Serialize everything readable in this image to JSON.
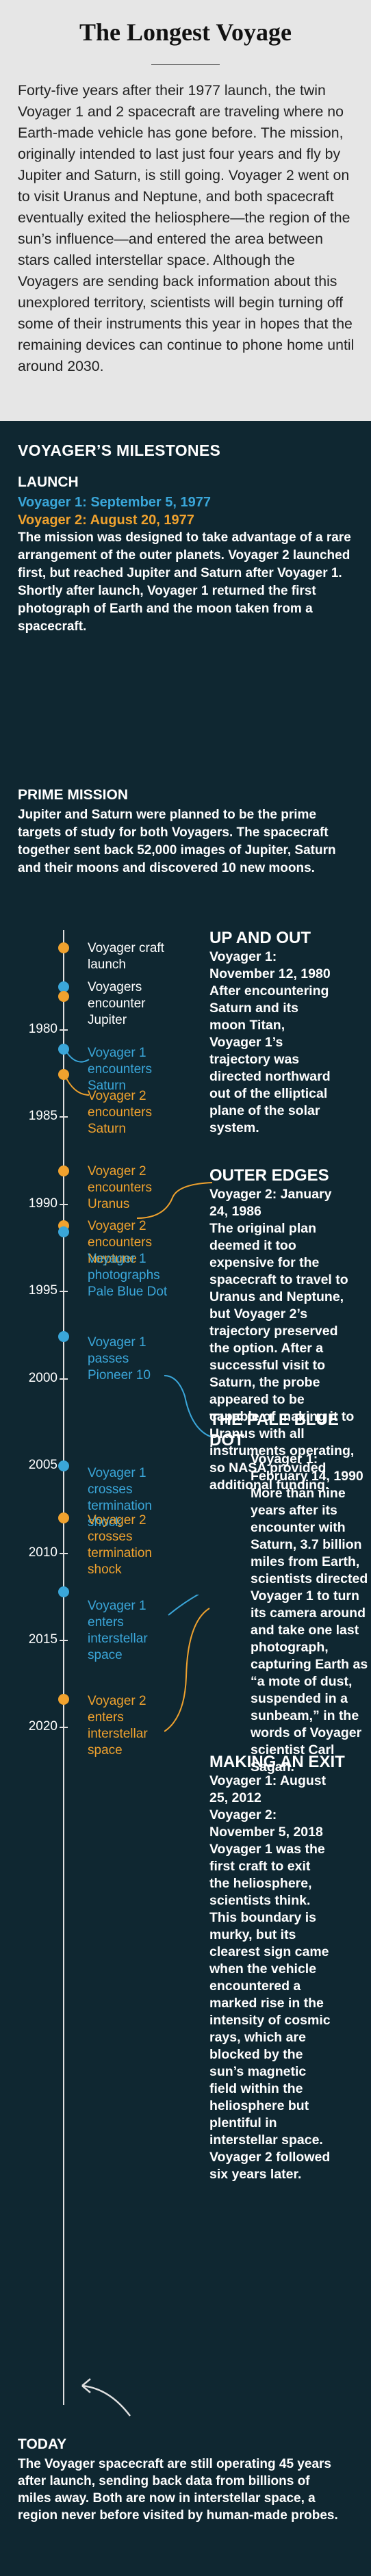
{
  "header": {
    "title": "The Longest Voyage",
    "intro": "Forty-five years after their 1977 launch, the twin Voyager 1 and 2 spacecraft are traveling where no Earth-made vehicle has gone before. The mission, originally intended to last just four years and fly by Jupiter and Saturn, is still going. Voyager 2 went on to visit Uranus and Neptune, and both spacecraft eventually exited the heliosphere—the region of the sun’s influence—and entered the area between stars called interstellar space. Although the Voyagers are sending back information about this unexplored territory, scientists will begin turning off some of their instruments this year in hopes that the remaining devices can continue to phone home until around 2030."
  },
  "milestones": {
    "heading": "VOYAGER’S MILESTONES",
    "launch": {
      "heading": "LAUNCH",
      "v1_date": "Voyager 1: September 5, 1977",
      "v2_date": "Voyager 2: August 20, 1977",
      "body": "The mission was designed to take advantage of a rare arrangement of the outer planets. Voyager 2 launched first, but reached Jupiter and Saturn after Voyager 1. Shortly after launch, Voyager 1 returned the first photograph of Earth and the moon taken from a spacecraft."
    },
    "prime": {
      "heading": "PRIME MISSION",
      "body": "Jupiter and Saturn were planned to be the prime targets of study for both Voyagers. The spacecraft together sent back 52,000 images of Jupiter, Saturn and their moons and discovered 10 new moons."
    }
  },
  "timeline": {
    "years": [
      "1980",
      "1985",
      "1990",
      "1995",
      "2000",
      "2005",
      "2010",
      "2015",
      "2020"
    ],
    "events": {
      "craft_launch": "Voyager craft launch",
      "encounter_jupiter": "Voyagers encounter Jupiter",
      "v1_saturn": "Voyager 1 encounters Saturn",
      "v2_saturn": "Voyager 2 encounters Saturn",
      "v2_uranus": "Voyager 2 encounters Uranus",
      "v2_neptune": "Voyager 2 encounters Neptune",
      "v1_pale_blue_dot": "Voyager 1 photographs Pale Blue Dot",
      "v1_pioneer": "Voyager 1 passes Pioneer 10",
      "v1_termination": "Voyager 1 crosses termination shock",
      "v2_termination": "Voyager 2 crosses termination shock",
      "v1_interstellar": "Voyager 1 enters interstellar space",
      "v2_interstellar": "Voyager 2 enters interstellar space"
    }
  },
  "stories": {
    "up_and_out": {
      "heading": "UP AND OUT",
      "date": "Voyager 1: November 12, 1980",
      "body": "After encountering Saturn and its moon Titan, Voyager 1’s trajectory was directed northward out of the elliptical plane of the solar system."
    },
    "outer_edges": {
      "heading": "OUTER EDGES",
      "date": "Voyager 2: January 24, 1986",
      "body": "The original plan deemed it too expensive for the spacecraft to travel to Uranus and Neptune, but Voyager 2’s trajectory preserved the option. After a successful visit to Saturn, the probe appeared to be capable of making it to Uranus with all instruments operating, so NASA provided additional funding."
    },
    "pale_blue_dot": {
      "heading": "THE PALE BLUE DOT",
      "date": "Voyager 1: February 14, 1990",
      "body": "More than nine years after its encounter with Saturn, 3.7 billion miles from Earth, scientists directed Voyager 1 to turn its camera around and take one last photograph, capturing Earth as “a mote of dust, suspended in a sunbeam,” in the words of Voyager scientist Carl Sagan."
    },
    "making_an_exit": {
      "heading": "MAKING AN EXIT",
      "date_v1": "Voyager 1: August 25, 2012",
      "date_v2": "Voyager 2: November 5, 2018",
      "body": "Voyager 1 was the first craft to exit the heliosphere, scientists think. This boundary is murky, but its clearest sign came when the vehicle encountered a marked rise in the intensity of cosmic rays, which are blocked by the sun’s magnetic field within the heliosphere but plentiful in interstellar space. Voyager 2 followed six years later."
    }
  },
  "today": {
    "heading": "TODAY",
    "body": "The Voyager spacecraft are still operating 45 years after launch, sending back data from billions of miles away. Both are now in interstellar space, a region never before visited by human-made probes."
  },
  "colors": {
    "voyager1": "#3aa6d9",
    "voyager2": "#f0a22e",
    "panel": "#0f2731",
    "header": "#e6e6e6"
  }
}
